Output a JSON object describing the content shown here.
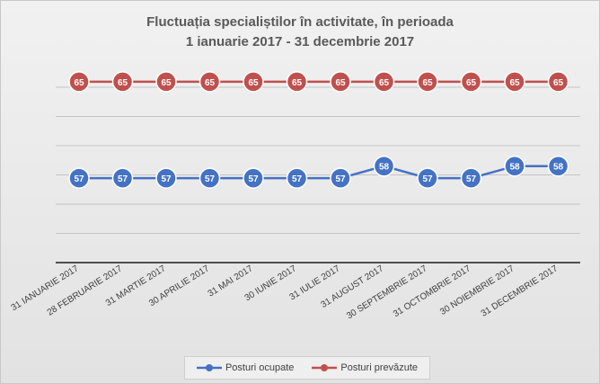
{
  "chart_data": {
    "type": "line",
    "title_line1": "Fluctuația specialiștilor în activitate, în perioada",
    "title_line2": "1 ianuarie 2017 - 31 decembrie 2017",
    "categories": [
      "31 IANUARIE 2017",
      "28 FEBRUARIE 2017",
      "31 MARTIE 2017",
      "30 APRILIE 2017",
      "31 MAI 2017",
      "30 IUNIE 2017",
      "31 IULIE 2017",
      "31 AUGUST 2017",
      "30 SEPTEMBRIE 2017",
      "31 OCTOMBRIE 2017",
      "30 NOIEMBRIE 2017",
      "31 DECEMBRIE 2017"
    ],
    "series": [
      {
        "name": "Posturi ocupate",
        "color": "#4472c4",
        "values": [
          57,
          57,
          57,
          57,
          57,
          57,
          57,
          58,
          57,
          57,
          58,
          58
        ]
      },
      {
        "name": "Posturi prevăzute",
        "color": "#c0504d",
        "values": [
          65,
          65,
          65,
          65,
          65,
          65,
          65,
          65,
          65,
          65,
          65,
          65
        ]
      }
    ],
    "ylim": [
      50,
      67
    ],
    "grid": true,
    "legend_position": "bottom"
  }
}
